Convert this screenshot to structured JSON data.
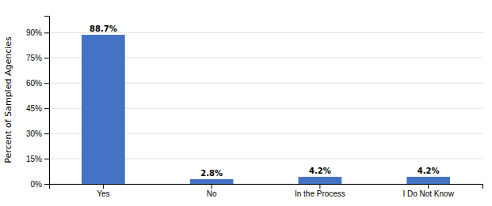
{
  "chart_data": {
    "type": "bar",
    "categories": [
      "Yes",
      "No",
      "In the Process",
      "I Do Not Know"
    ],
    "values": [
      88.7,
      2.8,
      4.2,
      4.2
    ],
    "value_labels": [
      "88.7%",
      "2.8%",
      "4.2%",
      "4.2%"
    ],
    "data_labels": true,
    "color": "#4472C4",
    "ylabel": "Percent of Sampled Agencies",
    "ylim": [
      0,
      100
    ],
    "yticks": [
      {
        "value": 0,
        "label": "0%"
      },
      {
        "value": 15,
        "label": "15%"
      },
      {
        "value": 30,
        "label": "30%"
      },
      {
        "value": 45,
        "label": "45%"
      },
      {
        "value": 60,
        "label": "60%"
      },
      {
        "value": 75,
        "label": "75%"
      },
      {
        "value": 90,
        "label": "90%"
      }
    ],
    "grid": true
  }
}
